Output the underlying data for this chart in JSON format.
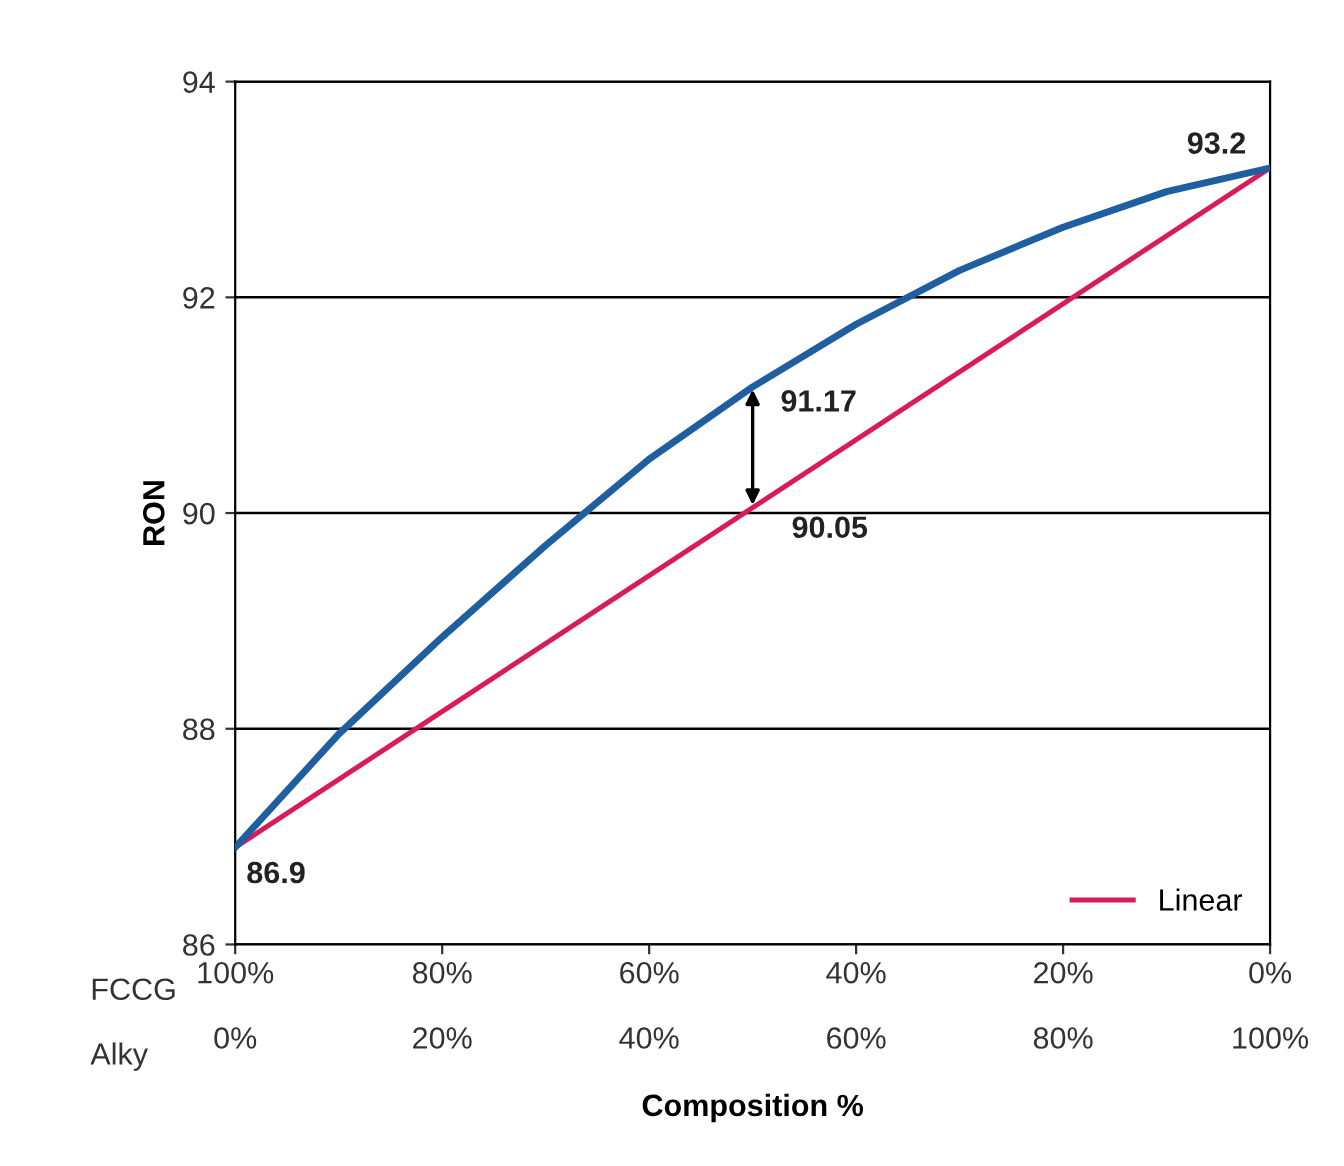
{
  "chart_data": {
    "type": "line",
    "xlabel": "Composition %",
    "ylabel": "RON",
    "xlim": [
      0,
      100
    ],
    "xticks": [
      {
        "value": 0,
        "label": "0%"
      },
      {
        "value": 20,
        "label": "20%"
      },
      {
        "value": 40,
        "label": "40%"
      },
      {
        "value": 60,
        "label": "60%"
      },
      {
        "value": 80,
        "label": "80%"
      },
      {
        "value": 100,
        "label": "100%"
      }
    ],
    "x2lim": [
      100,
      0
    ],
    "x2ticks": [
      {
        "value": 100,
        "label": "100%"
      },
      {
        "value": 80,
        "label": "80%"
      },
      {
        "value": 60,
        "label": "60%"
      },
      {
        "value": 40,
        "label": "40%"
      },
      {
        "value": 20,
        "label": "20%"
      },
      {
        "value": 0,
        "label": "0%"
      }
    ],
    "ylim": [
      86,
      94
    ],
    "yticks": [
      86,
      88,
      90,
      92,
      94
    ],
    "grid": "y",
    "legend": "bottom right",
    "marker": "none",
    "line_style": "solid",
    "series": [
      {
        "color": "#1f5fa0",
        "x": [
          0,
          10,
          20,
          30,
          40,
          50,
          60,
          70,
          80,
          90,
          100
        ],
        "values": [
          86.9,
          87.95,
          88.85,
          89.7,
          90.5,
          91.17,
          91.75,
          92.25,
          92.65,
          92.98,
          93.2
        ]
      },
      {
        "name": "Linear",
        "color": "#d81b5a",
        "x": [
          0,
          50,
          100
        ],
        "values": [
          86.9,
          90.05,
          93.2
        ]
      }
    ],
    "annotations": [
      "FCCG",
      "Alky",
      {
        "text": "86.9",
        "x": 0,
        "y": 86.9
      },
      {
        "text": "93.2",
        "x": 100,
        "y": 93.2
      },
      {
        "text": "91.17",
        "x": 50,
        "y": 91.17
      },
      {
        "text": "90.05",
        "x": 50,
        "y": 90.05
      }
    ]
  }
}
